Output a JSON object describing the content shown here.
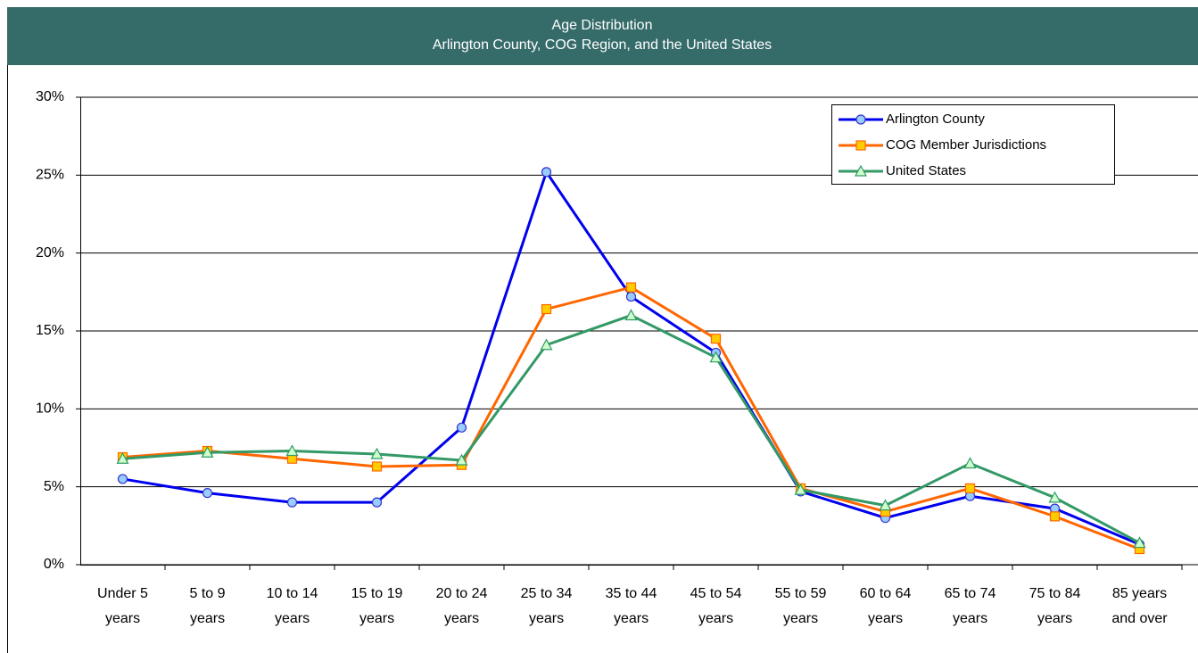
{
  "chart_data": {
    "type": "line",
    "title": [
      "Age Distribution",
      "Arlington County, COG Region, and the United States"
    ],
    "categories": [
      [
        "Under 5",
        "years"
      ],
      [
        "5 to 9",
        "years"
      ],
      [
        "10 to 14",
        "years"
      ],
      [
        "15 to 19",
        "years"
      ],
      [
        "20 to 24",
        "years"
      ],
      [
        "25 to 34",
        "years"
      ],
      [
        "35 to 44",
        "years"
      ],
      [
        "45 to 54",
        "years"
      ],
      [
        "55 to 59",
        "years"
      ],
      [
        "60 to 64",
        "years"
      ],
      [
        "65 to 74",
        "years"
      ],
      [
        "75 to 84",
        "years"
      ],
      [
        "85 years",
        "and over"
      ]
    ],
    "series": [
      {
        "name": "Arlington County",
        "color": "#0000ee",
        "marker": "circle",
        "marker_fill": "#99ccff",
        "marker_stroke": "#3333cc",
        "values": [
          5.5,
          4.6,
          4.0,
          4.0,
          8.8,
          25.2,
          17.2,
          13.6,
          4.7,
          3.0,
          4.4,
          3.6,
          1.3
        ]
      },
      {
        "name": "COG Member Jurisdictions",
        "color": "#ff6600",
        "marker": "square",
        "marker_fill": "#ffcc00",
        "marker_stroke": "#ff6600",
        "values": [
          6.9,
          7.3,
          6.8,
          6.3,
          6.4,
          16.4,
          17.8,
          14.5,
          4.9,
          3.4,
          4.9,
          3.1,
          1.0
        ]
      },
      {
        "name": "United States",
        "color": "#339966",
        "marker": "triangle",
        "marker_fill": "#ccffcc",
        "marker_stroke": "#339966",
        "values": [
          6.8,
          7.2,
          7.3,
          7.1,
          6.7,
          14.1,
          16.0,
          13.3,
          4.8,
          3.8,
          6.5,
          4.3,
          1.4
        ]
      }
    ],
    "ylim": [
      0,
      30
    ],
    "yticks": [
      {
        "value": 0,
        "label": "0%"
      },
      {
        "value": 5,
        "label": "5%"
      },
      {
        "value": 10,
        "label": "10%"
      },
      {
        "value": 15,
        "label": "15%"
      },
      {
        "value": 20,
        "label": "20%"
      },
      {
        "value": 25,
        "label": "25%"
      },
      {
        "value": 30,
        "label": "30%"
      }
    ],
    "grid": true,
    "legend": "top-right"
  }
}
